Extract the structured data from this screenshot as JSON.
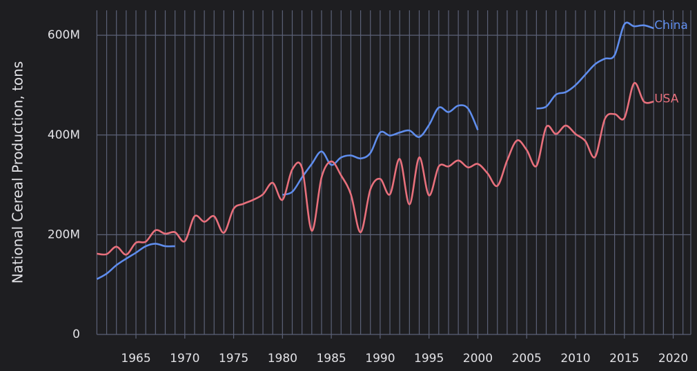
{
  "chart_data": {
    "type": "line",
    "y_label": "National Cereal Production, tons",
    "x": [
      1961,
      1962,
      1963,
      1964,
      1965,
      1966,
      1967,
      1968,
      1969,
      1970,
      1971,
      1972,
      1973,
      1974,
      1975,
      1976,
      1977,
      1978,
      1979,
      1980,
      1981,
      1982,
      1983,
      1984,
      1985,
      1986,
      1987,
      1988,
      1989,
      1990,
      1991,
      1992,
      1993,
      1994,
      1995,
      1996,
      1997,
      1998,
      1999,
      2000,
      2001,
      2002,
      2003,
      2004,
      2005,
      2006,
      2007,
      2008,
      2009,
      2010,
      2011,
      2012,
      2013,
      2014,
      2015,
      2016,
      2017,
      2018
    ],
    "series": [
      {
        "name": "China",
        "color": "#5f8ded",
        "values": [
          111000000,
          122000000,
          139000000,
          152000000,
          164000000,
          177000000,
          182000000,
          177000000,
          177000000,
          null,
          null,
          null,
          null,
          null,
          null,
          null,
          null,
          null,
          null,
          280000000,
          286000000,
          315000000,
          342000000,
          367000000,
          340000000,
          355000000,
          359000000,
          353000000,
          364000000,
          405000000,
          399000000,
          405000000,
          409000000,
          396000000,
          420000000,
          455000000,
          446000000,
          459000000,
          453000000,
          410000000,
          null,
          null,
          null,
          null,
          null,
          453000000,
          457000000,
          481000000,
          486000000,
          500000000,
          521000000,
          542000000,
          553000000,
          560000000,
          622000000,
          618000000,
          620000000,
          614000000
        ]
      },
      {
        "name": "USA",
        "color": "#e8707c",
        "values": [
          162000000,
          161000000,
          176000000,
          160000000,
          184000000,
          186000000,
          209000000,
          202000000,
          205000000,
          187000000,
          237000000,
          226000000,
          237000000,
          204000000,
          252000000,
          262000000,
          270000000,
          281000000,
          304000000,
          270000000,
          331000000,
          334000000,
          208000000,
          315000000,
          347000000,
          319000000,
          281000000,
          205000000,
          291000000,
          312000000,
          281000000,
          352000000,
          261000000,
          355000000,
          279000000,
          337000000,
          337000000,
          349000000,
          335000000,
          342000000,
          323000000,
          298000000,
          349000000,
          389000000,
          370000000,
          338000000,
          416000000,
          402000000,
          419000000,
          402000000,
          388000000,
          356000000,
          432000000,
          442000000,
          434000000,
          504000000,
          467000000,
          467000000
        ]
      }
    ],
    "xlim": [
      1961,
      2021.8
    ],
    "xticks": [
      1965,
      1970,
      1975,
      1980,
      1985,
      1990,
      1995,
      2000,
      2005,
      2010,
      2015,
      2020
    ],
    "ylim": [
      0,
      650000000
    ],
    "yticks": [
      0,
      {
        "value": 200000000,
        "label": "200M"
      },
      {
        "value": 400000000,
        "label": "400M"
      },
      {
        "value": 600000000,
        "label": "600M"
      }
    ],
    "grid": true
  }
}
